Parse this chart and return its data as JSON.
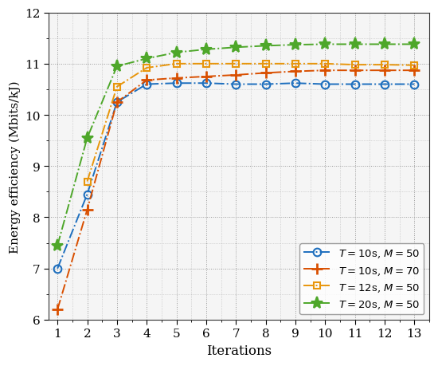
{
  "iterations": [
    1,
    2,
    3,
    4,
    5,
    6,
    7,
    8,
    9,
    10,
    11,
    12,
    13
  ],
  "series": [
    {
      "label": "$T = 10$s, $M = 50$",
      "color": "#1E6FBE",
      "marker": "o",
      "linestyle": "-.",
      "values": [
        7.0,
        8.45,
        10.25,
        10.6,
        10.62,
        10.62,
        10.6,
        10.6,
        10.62,
        10.6,
        10.6,
        10.6,
        10.6
      ]
    },
    {
      "label": "$T = 10$s, $M = 70$",
      "color": "#D94F00",
      "marker": "+",
      "linestyle": "-.",
      "values": [
        6.2,
        8.15,
        10.25,
        10.68,
        10.72,
        10.75,
        10.78,
        10.82,
        10.85,
        10.87,
        10.87,
        10.87,
        10.87
      ]
    },
    {
      "label": "$T = 12$s, $M = 50$",
      "color": "#E8960C",
      "marker": "s",
      "linestyle": "-.",
      "values": [
        null,
        8.7,
        10.55,
        10.92,
        11.0,
        11.0,
        11.0,
        11.0,
        11.0,
        11.0,
        10.98,
        10.98,
        10.97
      ]
    },
    {
      "label": "$T = 20$s, $M = 50$",
      "color": "#4EA72A",
      "marker": "*",
      "linestyle": "-.",
      "values": [
        7.45,
        9.55,
        10.95,
        11.1,
        11.22,
        11.28,
        11.32,
        11.35,
        11.37,
        11.38,
        11.38,
        11.38,
        11.38
      ]
    }
  ],
  "xlim": [
    0.7,
    13.5
  ],
  "ylim": [
    6.0,
    12.0
  ],
  "yticks": [
    6,
    7,
    8,
    9,
    10,
    11,
    12
  ],
  "xticks": [
    1,
    2,
    3,
    4,
    5,
    6,
    7,
    8,
    9,
    10,
    11,
    12,
    13
  ],
  "xlabel": "Iterations",
  "ylabel": "Energy efficiency (Mbits/kJ)",
  "legend_loc": "lower right",
  "plot_bg_color": "#f5f5f5",
  "fig_bg_color": "#ffffff"
}
